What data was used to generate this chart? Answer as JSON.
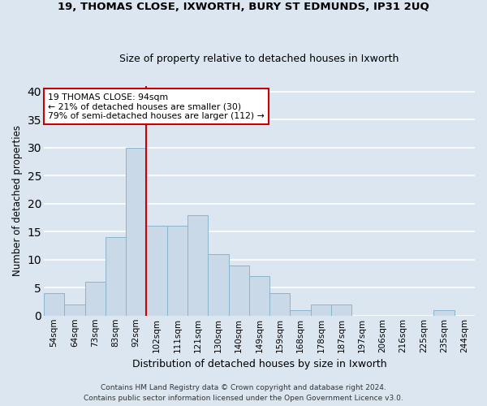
{
  "title1": "19, THOMAS CLOSE, IXWORTH, BURY ST EDMUNDS, IP31 2UQ",
  "title2": "Size of property relative to detached houses in Ixworth",
  "xlabel": "Distribution of detached houses by size in Ixworth",
  "ylabel": "Number of detached properties",
  "categories": [
    "54sqm",
    "64sqm",
    "73sqm",
    "83sqm",
    "92sqm",
    "102sqm",
    "111sqm",
    "121sqm",
    "130sqm",
    "140sqm",
    "149sqm",
    "159sqm",
    "168sqm",
    "178sqm",
    "187sqm",
    "197sqm",
    "206sqm",
    "216sqm",
    "225sqm",
    "235sqm",
    "244sqm"
  ],
  "values": [
    4,
    2,
    6,
    14,
    30,
    16,
    16,
    18,
    11,
    9,
    7,
    4,
    1,
    2,
    2,
    0,
    0,
    0,
    0,
    1,
    0
  ],
  "bar_color": "#c9d9e8",
  "bar_edge_color": "#8ab4cc",
  "background_color": "#dce6f0",
  "fig_background_color": "#dce6f0",
  "grid_color": "#ffffff",
  "vline_x": 4.5,
  "vline_color": "#cc0000",
  "annotation_text": "19 THOMAS CLOSE: 94sqm\n← 21% of detached houses are smaller (30)\n79% of semi-detached houses are larger (112) →",
  "annotation_box_color": "#ffffff",
  "annotation_box_edge_color": "#cc0000",
  "ylim": [
    0,
    41
  ],
  "yticks": [
    0,
    5,
    10,
    15,
    20,
    25,
    30,
    35,
    40
  ],
  "footer1": "Contains HM Land Registry data © Crown copyright and database right 2024.",
  "footer2": "Contains public sector information licensed under the Open Government Licence v3.0."
}
